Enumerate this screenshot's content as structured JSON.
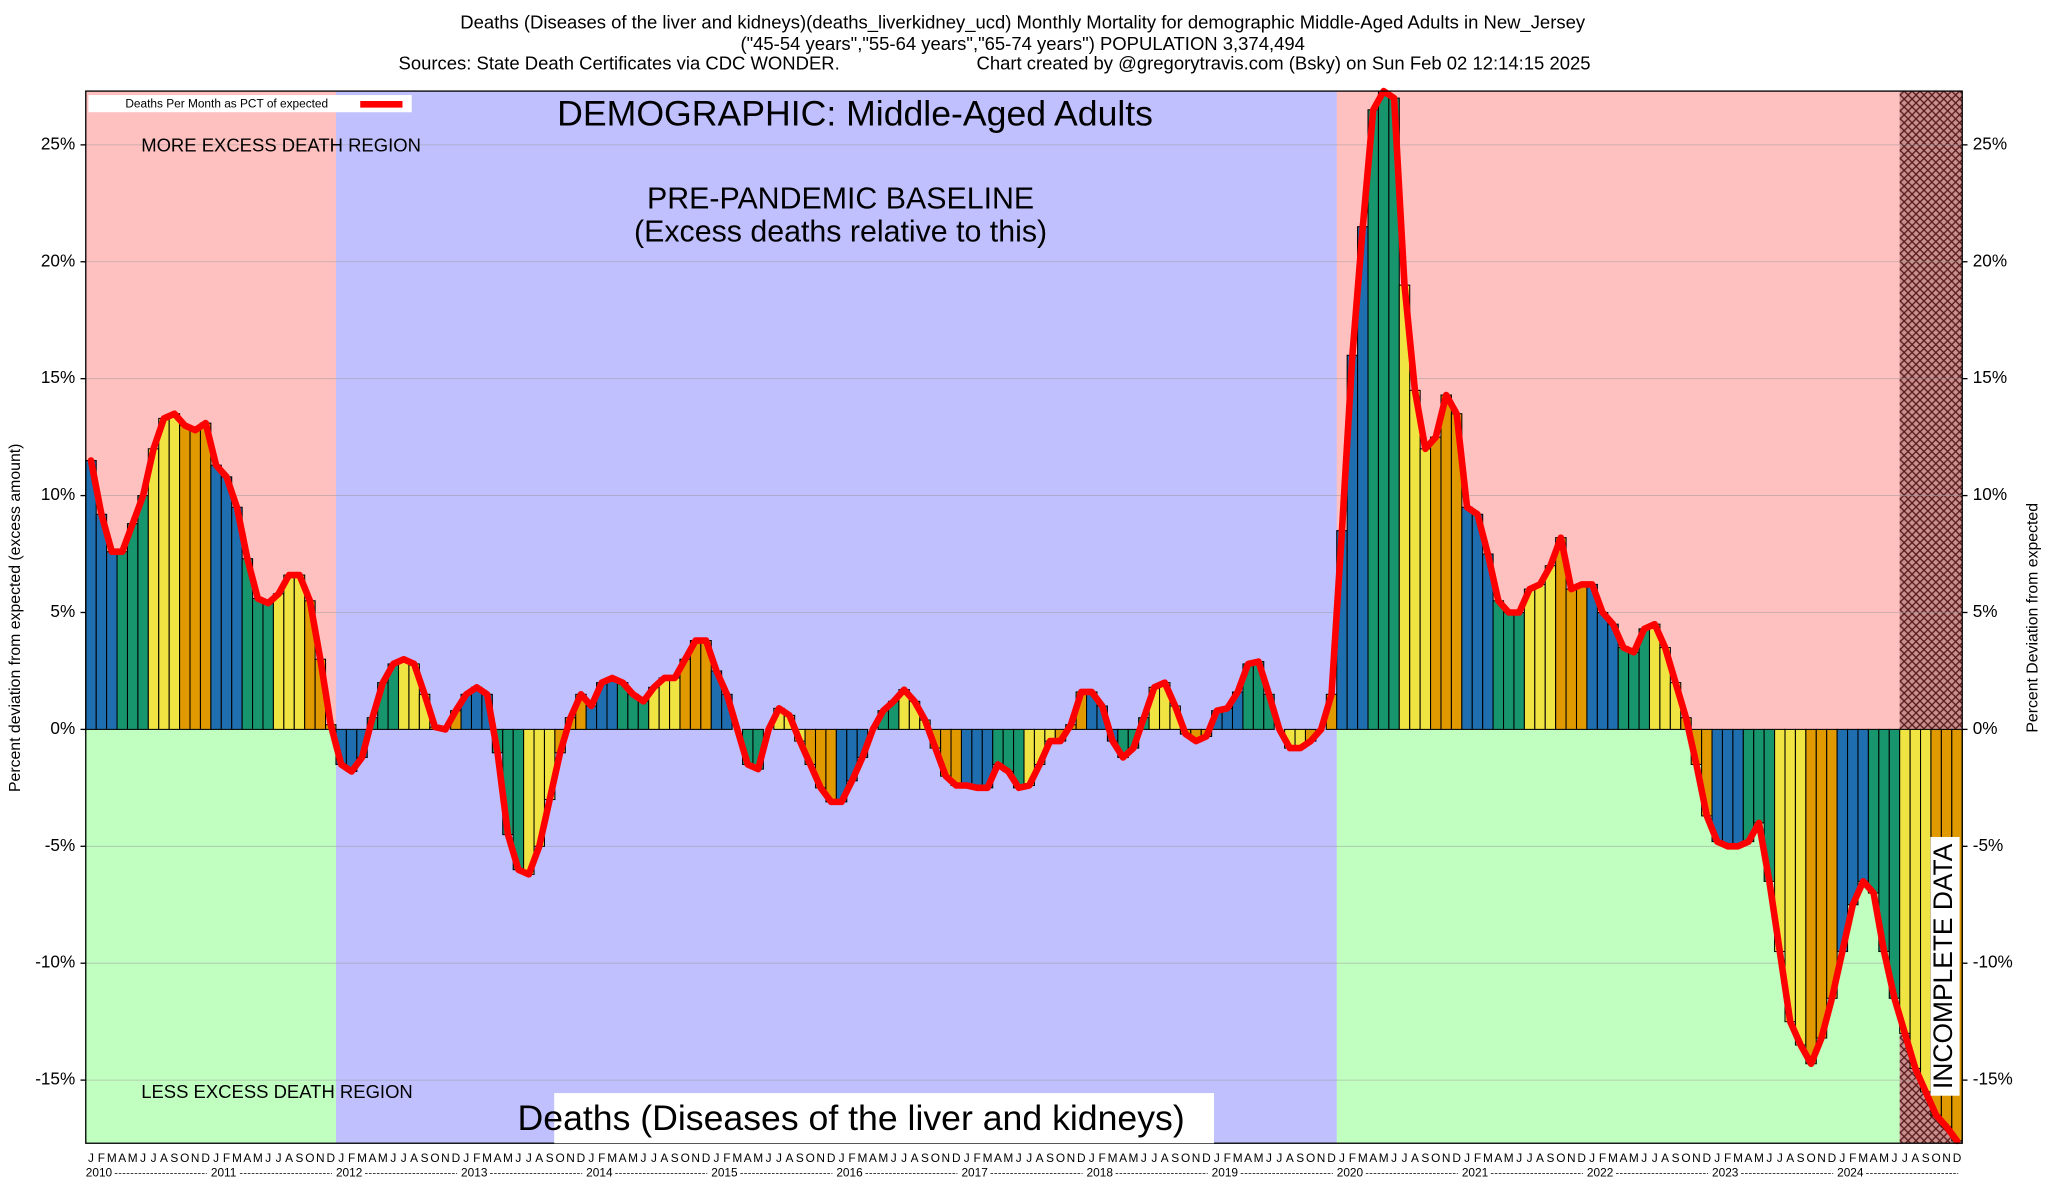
{
  "chart_data": {
    "type": "bar",
    "title_lines": [
      "Deaths (Diseases of the liver and kidneys)(deaths_liverkidney_ucd) Monthly Mortality for demographic Middle-Aged Adults in New_Jersey",
      "(\"45-54 years\",\"55-64 years\",\"65-74 years\") POPULATION 3,374,494"
    ],
    "source": "Sources: State Death Certificates via CDC WONDER.",
    "credit": "Chart created by @gregorytravis.com (Bsky) on Sun Feb 02 12:14:15 2025",
    "demographic_label": "DEMOGRAPHIC: Middle-Aged Adults",
    "baseline_label": [
      "PRE-PANDEMIC BASELINE",
      "(Excess deaths relative to this)"
    ],
    "more_region_label": "MORE EXCESS DEATH REGION",
    "less_region_label": "LESS EXCESS DEATH REGION",
    "bottom_label": "Deaths (Diseases of the liver and kidneys)",
    "incomplete_label": "INCOMPLETE DATA",
    "ylabel": "Percent deviation from expected (excess amount)",
    "y2label": "Percent Deviation from expected",
    "legend": "top-left",
    "years": [
      "2010",
      "2011",
      "2012",
      "2013",
      "2014",
      "2015",
      "2016",
      "2017",
      "2018",
      "2019",
      "2020",
      "2021",
      "2022",
      "2023",
      "2024"
    ],
    "categories": [
      "J",
      "F",
      "M",
      "A",
      "M",
      "J",
      "J",
      "A",
      "S",
      "O",
      "N",
      "D",
      "J",
      "F",
      "M",
      "A",
      "M",
      "J",
      "J",
      "A",
      "S",
      "O",
      "N",
      "D",
      "J",
      "F",
      "M",
      "A",
      "M",
      "J",
      "J",
      "A",
      "S",
      "O",
      "N",
      "D",
      "J",
      "F",
      "M",
      "A",
      "M",
      "J",
      "J",
      "A",
      "S",
      "O",
      "N",
      "D",
      "J",
      "F",
      "M",
      "A",
      "M",
      "J",
      "J",
      "A",
      "S",
      "O",
      "N",
      "D",
      "J",
      "F",
      "M",
      "A",
      "M",
      "J",
      "J",
      "A",
      "S",
      "O",
      "N",
      "D",
      "J",
      "F",
      "M",
      "A",
      "M",
      "J",
      "J",
      "A",
      "S",
      "O",
      "N",
      "D",
      "J",
      "F",
      "M",
      "A",
      "M",
      "J",
      "J",
      "A",
      "S",
      "O",
      "N",
      "D",
      "J",
      "F",
      "M",
      "A",
      "M",
      "J",
      "J",
      "A",
      "S",
      "O",
      "N",
      "D",
      "J",
      "F",
      "M",
      "A",
      "M",
      "J",
      "J",
      "A",
      "S",
      "O",
      "N",
      "D",
      "J",
      "F",
      "M",
      "A",
      "M",
      "J",
      "J",
      "A",
      "S",
      "O",
      "N",
      "D",
      "J",
      "F",
      "M",
      "A",
      "M",
      "J",
      "J",
      "A",
      "S",
      "O",
      "N",
      "D",
      "J",
      "F",
      "M",
      "A",
      "M",
      "J",
      "J",
      "A",
      "S",
      "O",
      "N",
      "D",
      "J",
      "F",
      "M",
      "A",
      "M",
      "J",
      "J",
      "A",
      "S",
      "O",
      "N",
      "D",
      "J",
      "F",
      "M",
      "A",
      "M",
      "J",
      "J",
      "A",
      "S",
      "O",
      "N",
      "D"
    ],
    "bar_colors": [
      "#1f6fb0",
      "#17966e",
      "#f0e442",
      "#e09a00"
    ],
    "series": [
      {
        "name": "Deaths Per Month as PCT of expected",
        "color": "#ff0000",
        "values": [
          11.5,
          9.2,
          7.6,
          7.6,
          8.8,
          10,
          12,
          13.3,
          13.5,
          13,
          12.8,
          13.1,
          11.3,
          10.8,
          9.5,
          7.3,
          5.6,
          5.4,
          5.8,
          6.6,
          6.6,
          5.5,
          3.0,
          0.2,
          -1.5,
          -1.8,
          -1.2,
          0.5,
          2.0,
          2.8,
          3.0,
          2.8,
          1.5,
          0.1,
          0,
          0.8,
          1.5,
          1.8,
          1.5,
          -1.0,
          -4.5,
          -6.0,
          -6.2,
          -5.0,
          -3.0,
          -1.0,
          0.5,
          1.5,
          1.0,
          2.0,
          2.2,
          2.0,
          1.5,
          1.2,
          1.8,
          2.2,
          2.2,
          3.0,
          3.8,
          3.8,
          2.5,
          1.5,
          0,
          -1.5,
          -1.7,
          0,
          0.9,
          0.6,
          -0.5,
          -1.5,
          -2.5,
          -3.1,
          -3.1,
          -2.2,
          -1.2,
          0,
          0.8,
          1.2,
          1.7,
          1.2,
          0.4,
          -0.8,
          -2.0,
          -2.4,
          -2.4,
          -2.5,
          -2.5,
          -1.5,
          -1.8,
          -2.5,
          -2.4,
          -1.5,
          -0.5,
          -0.5,
          0.2,
          1.6,
          1.6,
          1.0,
          -0.5,
          -1.2,
          -0.8,
          0.5,
          1.8,
          2.0,
          1.0,
          -0.2,
          -0.5,
          -0.3,
          0.8,
          0.9,
          1.6,
          2.8,
          2.9,
          1.5,
          0,
          -0.8,
          -0.8,
          -0.5,
          0,
          1.5,
          8.5,
          16,
          21.5,
          26.5,
          27.3,
          27,
          19,
          14.5,
          12,
          12.5,
          14.3,
          13.5,
          9.5,
          9.2,
          7.5,
          5.5,
          5,
          5,
          6,
          6.2,
          7,
          8.2,
          6,
          6.2,
          6.2,
          5,
          4.5,
          3.5,
          3.3,
          4.3,
          4.5,
          3.5,
          2,
          0.5,
          -1.5,
          -3.7,
          -4.8,
          -5,
          -5,
          -4.8,
          -4,
          -6.5,
          -9.5,
          -12.5,
          -13.5,
          -14.3,
          -13.2,
          -11.5,
          -9.5,
          -7.5,
          -6.5,
          -7,
          -9.5,
          -11.5,
          -13,
          -14.5,
          -15.5,
          -16.5,
          -17,
          -17.6
        ]
      }
    ],
    "ylim": [
      -17.7,
      27.3
    ],
    "yticks": [
      {
        "value": -15,
        "label": "-15%"
      },
      {
        "value": -10,
        "label": "-10%"
      },
      {
        "value": -5,
        "label": "-5%"
      },
      {
        "value": 0,
        "label": "0%"
      },
      {
        "value": 5,
        "label": "5%"
      },
      {
        "value": 10,
        "label": "10%"
      },
      {
        "value": 15,
        "label": "15%"
      },
      {
        "value": 20,
        "label": "20%"
      },
      {
        "value": 25,
        "label": "25%"
      }
    ],
    "grid": true
  }
}
